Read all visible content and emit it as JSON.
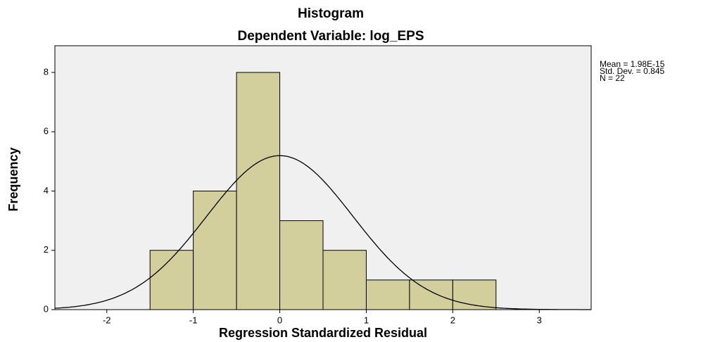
{
  "chart_data": {
    "type": "histogram",
    "title": "Histogram",
    "subtitle": "Dependent Variable: log_EPS",
    "x_label": "Regression Standardized Residual",
    "y_label": "Frequency",
    "bins": [
      -1.5,
      -1,
      -0.5,
      0,
      0.5,
      1,
      1.5,
      2,
      2.5
    ],
    "counts": [
      2,
      4,
      8,
      3,
      2,
      1,
      1,
      1
    ],
    "color": "#d3cf9c",
    "edge_color": "#000000",
    "background": "#f0f0f0",
    "xlim": [
      -2.6,
      3.6
    ],
    "xticks": [
      -2,
      -1,
      0,
      1,
      2,
      3
    ],
    "ylim": [
      0,
      8.9
    ],
    "yticks": [
      0,
      2,
      4,
      6,
      8
    ],
    "annotations": [
      "Mean = 1.98E-15",
      "Std. Dev. = 0.845",
      "N = 22"
    ],
    "normal_curve": {
      "mean": 1.98e-15,
      "sd": 0.845,
      "n": 22
    }
  }
}
